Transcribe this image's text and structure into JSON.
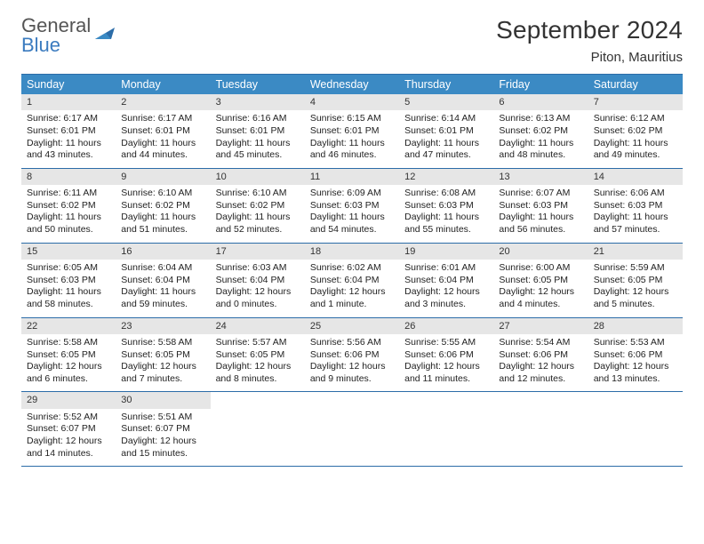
{
  "logo": {
    "word1": "General",
    "word2": "Blue"
  },
  "title": "September 2024",
  "location": "Piton, Mauritius",
  "colors": {
    "header_bg": "#3b8ac4",
    "border": "#2c6ca8",
    "cell_head_bg": "#e6e6e6",
    "logo_blue": "#3b7bbf",
    "text": "#222222"
  },
  "day_names": [
    "Sunday",
    "Monday",
    "Tuesday",
    "Wednesday",
    "Thursday",
    "Friday",
    "Saturday"
  ],
  "weeks": [
    [
      {
        "n": "1",
        "sr": "6:17 AM",
        "ss": "6:01 PM",
        "dl": "11 hours and 43 minutes."
      },
      {
        "n": "2",
        "sr": "6:17 AM",
        "ss": "6:01 PM",
        "dl": "11 hours and 44 minutes."
      },
      {
        "n": "3",
        "sr": "6:16 AM",
        "ss": "6:01 PM",
        "dl": "11 hours and 45 minutes."
      },
      {
        "n": "4",
        "sr": "6:15 AM",
        "ss": "6:01 PM",
        "dl": "11 hours and 46 minutes."
      },
      {
        "n": "5",
        "sr": "6:14 AM",
        "ss": "6:01 PM",
        "dl": "11 hours and 47 minutes."
      },
      {
        "n": "6",
        "sr": "6:13 AM",
        "ss": "6:02 PM",
        "dl": "11 hours and 48 minutes."
      },
      {
        "n": "7",
        "sr": "6:12 AM",
        "ss": "6:02 PM",
        "dl": "11 hours and 49 minutes."
      }
    ],
    [
      {
        "n": "8",
        "sr": "6:11 AM",
        "ss": "6:02 PM",
        "dl": "11 hours and 50 minutes."
      },
      {
        "n": "9",
        "sr": "6:10 AM",
        "ss": "6:02 PM",
        "dl": "11 hours and 51 minutes."
      },
      {
        "n": "10",
        "sr": "6:10 AM",
        "ss": "6:02 PM",
        "dl": "11 hours and 52 minutes."
      },
      {
        "n": "11",
        "sr": "6:09 AM",
        "ss": "6:03 PM",
        "dl": "11 hours and 54 minutes."
      },
      {
        "n": "12",
        "sr": "6:08 AM",
        "ss": "6:03 PM",
        "dl": "11 hours and 55 minutes."
      },
      {
        "n": "13",
        "sr": "6:07 AM",
        "ss": "6:03 PM",
        "dl": "11 hours and 56 minutes."
      },
      {
        "n": "14",
        "sr": "6:06 AM",
        "ss": "6:03 PM",
        "dl": "11 hours and 57 minutes."
      }
    ],
    [
      {
        "n": "15",
        "sr": "6:05 AM",
        "ss": "6:03 PM",
        "dl": "11 hours and 58 minutes."
      },
      {
        "n": "16",
        "sr": "6:04 AM",
        "ss": "6:04 PM",
        "dl": "11 hours and 59 minutes."
      },
      {
        "n": "17",
        "sr": "6:03 AM",
        "ss": "6:04 PM",
        "dl": "12 hours and 0 minutes."
      },
      {
        "n": "18",
        "sr": "6:02 AM",
        "ss": "6:04 PM",
        "dl": "12 hours and 1 minute."
      },
      {
        "n": "19",
        "sr": "6:01 AM",
        "ss": "6:04 PM",
        "dl": "12 hours and 3 minutes."
      },
      {
        "n": "20",
        "sr": "6:00 AM",
        "ss": "6:05 PM",
        "dl": "12 hours and 4 minutes."
      },
      {
        "n": "21",
        "sr": "5:59 AM",
        "ss": "6:05 PM",
        "dl": "12 hours and 5 minutes."
      }
    ],
    [
      {
        "n": "22",
        "sr": "5:58 AM",
        "ss": "6:05 PM",
        "dl": "12 hours and 6 minutes."
      },
      {
        "n": "23",
        "sr": "5:58 AM",
        "ss": "6:05 PM",
        "dl": "12 hours and 7 minutes."
      },
      {
        "n": "24",
        "sr": "5:57 AM",
        "ss": "6:05 PM",
        "dl": "12 hours and 8 minutes."
      },
      {
        "n": "25",
        "sr": "5:56 AM",
        "ss": "6:06 PM",
        "dl": "12 hours and 9 minutes."
      },
      {
        "n": "26",
        "sr": "5:55 AM",
        "ss": "6:06 PM",
        "dl": "12 hours and 11 minutes."
      },
      {
        "n": "27",
        "sr": "5:54 AM",
        "ss": "6:06 PM",
        "dl": "12 hours and 12 minutes."
      },
      {
        "n": "28",
        "sr": "5:53 AM",
        "ss": "6:06 PM",
        "dl": "12 hours and 13 minutes."
      }
    ],
    [
      {
        "n": "29",
        "sr": "5:52 AM",
        "ss": "6:07 PM",
        "dl": "12 hours and 14 minutes."
      },
      {
        "n": "30",
        "sr": "5:51 AM",
        "ss": "6:07 PM",
        "dl": "12 hours and 15 minutes."
      },
      null,
      null,
      null,
      null,
      null
    ]
  ],
  "labels": {
    "sunrise": "Sunrise:",
    "sunset": "Sunset:",
    "daylight": "Daylight:"
  }
}
